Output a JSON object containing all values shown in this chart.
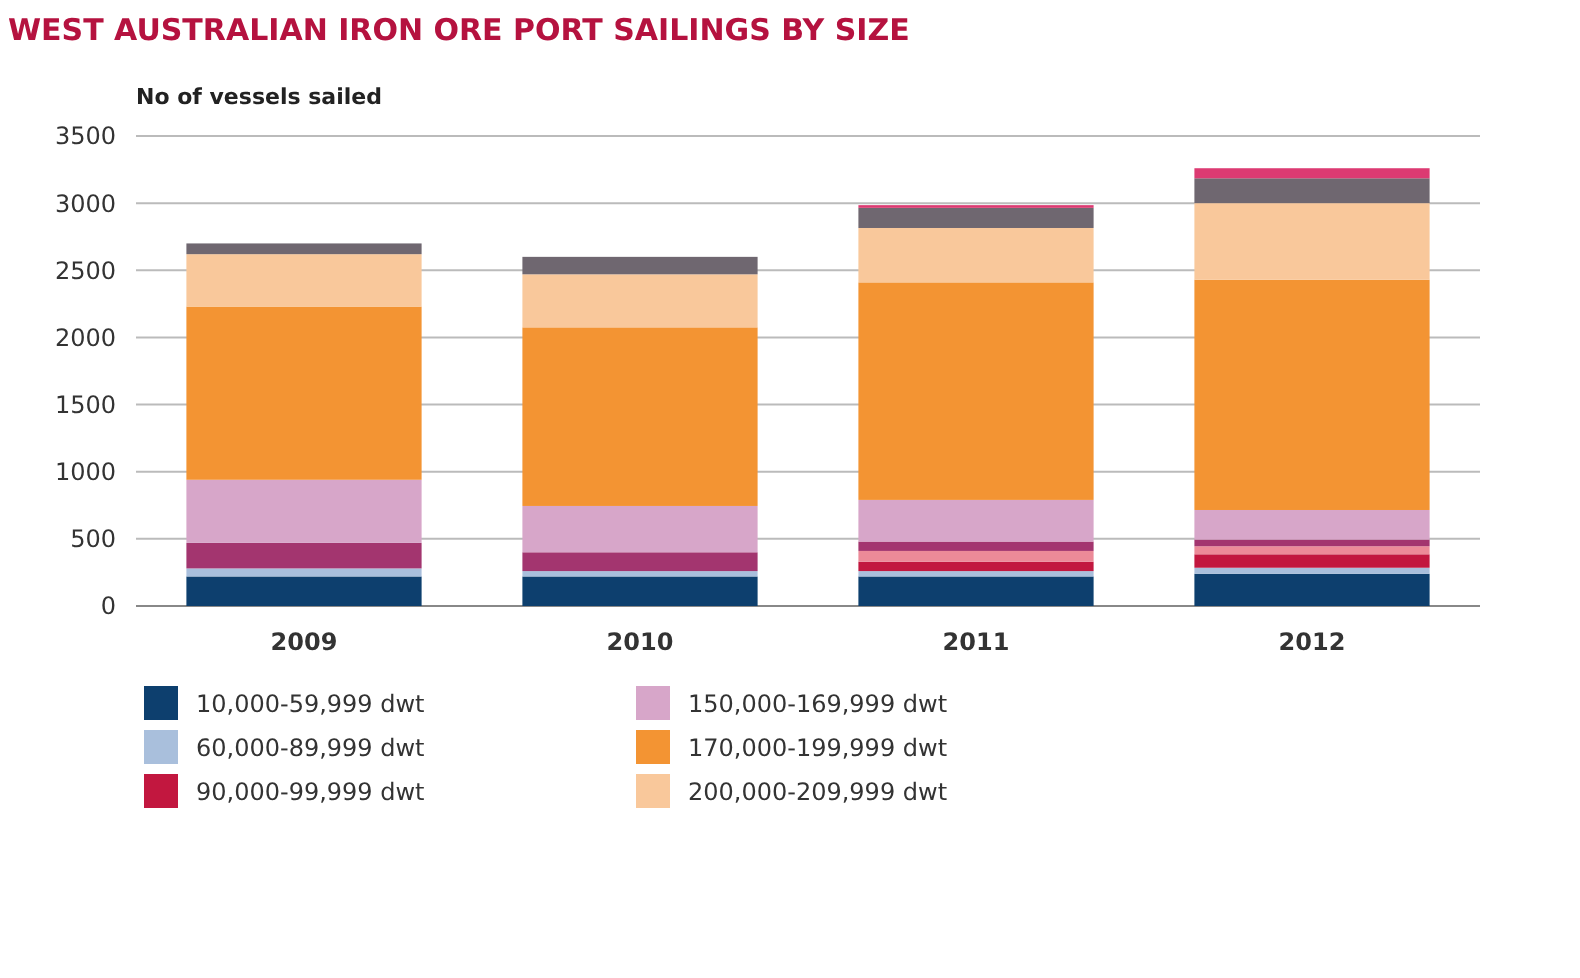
{
  "chart_data": {
    "type": "bar",
    "stacked": true,
    "title": "WEST AUSTRALIAN IRON ORE PORT SAILINGS BY SIZE",
    "ylabel": "No of vessels sailed",
    "categories": [
      "2009",
      "2010",
      "2011",
      "2012"
    ],
    "ylim": [
      0,
      3500
    ],
    "yticks": [
      0,
      500,
      1000,
      1500,
      2000,
      2500,
      3000,
      3500
    ],
    "grid": "y",
    "legend": "bottom",
    "series": [
      {
        "name": "10,000-59,999 dwt",
        "color": "#0d3f6e",
        "values": [
          220,
          220,
          220,
          240
        ]
      },
      {
        "name": "60,000-89,999 dwt",
        "color": "#a9bfdc",
        "values": [
          60,
          40,
          40,
          45
        ]
      },
      {
        "name": "90,000-99,999 dwt",
        "color": "#c2173f",
        "values": [
          0,
          0,
          70,
          100
        ]
      },
      {
        "color": "#ec8a98",
        "values": [
          0,
          0,
          80,
          60
        ]
      },
      {
        "color": "#a3356f",
        "values": [
          190,
          140,
          70,
          50
        ]
      },
      {
        "name": "150,000-169,999 dwt",
        "color": "#d7a6c9",
        "values": [
          470,
          345,
          310,
          220
        ]
      },
      {
        "name": "170,000-199,999 dwt",
        "color": "#f39433",
        "values": [
          1290,
          1330,
          1620,
          1715
        ]
      },
      {
        "name": "200,000-209,999 dwt",
        "color": "#f9c89b",
        "values": [
          390,
          395,
          405,
          570
        ]
      },
      {
        "color": "#6f6770",
        "values": [
          80,
          130,
          150,
          185
        ]
      },
      {
        "color": "#dc3a72",
        "values": [
          0,
          0,
          20,
          75
        ]
      }
    ]
  }
}
